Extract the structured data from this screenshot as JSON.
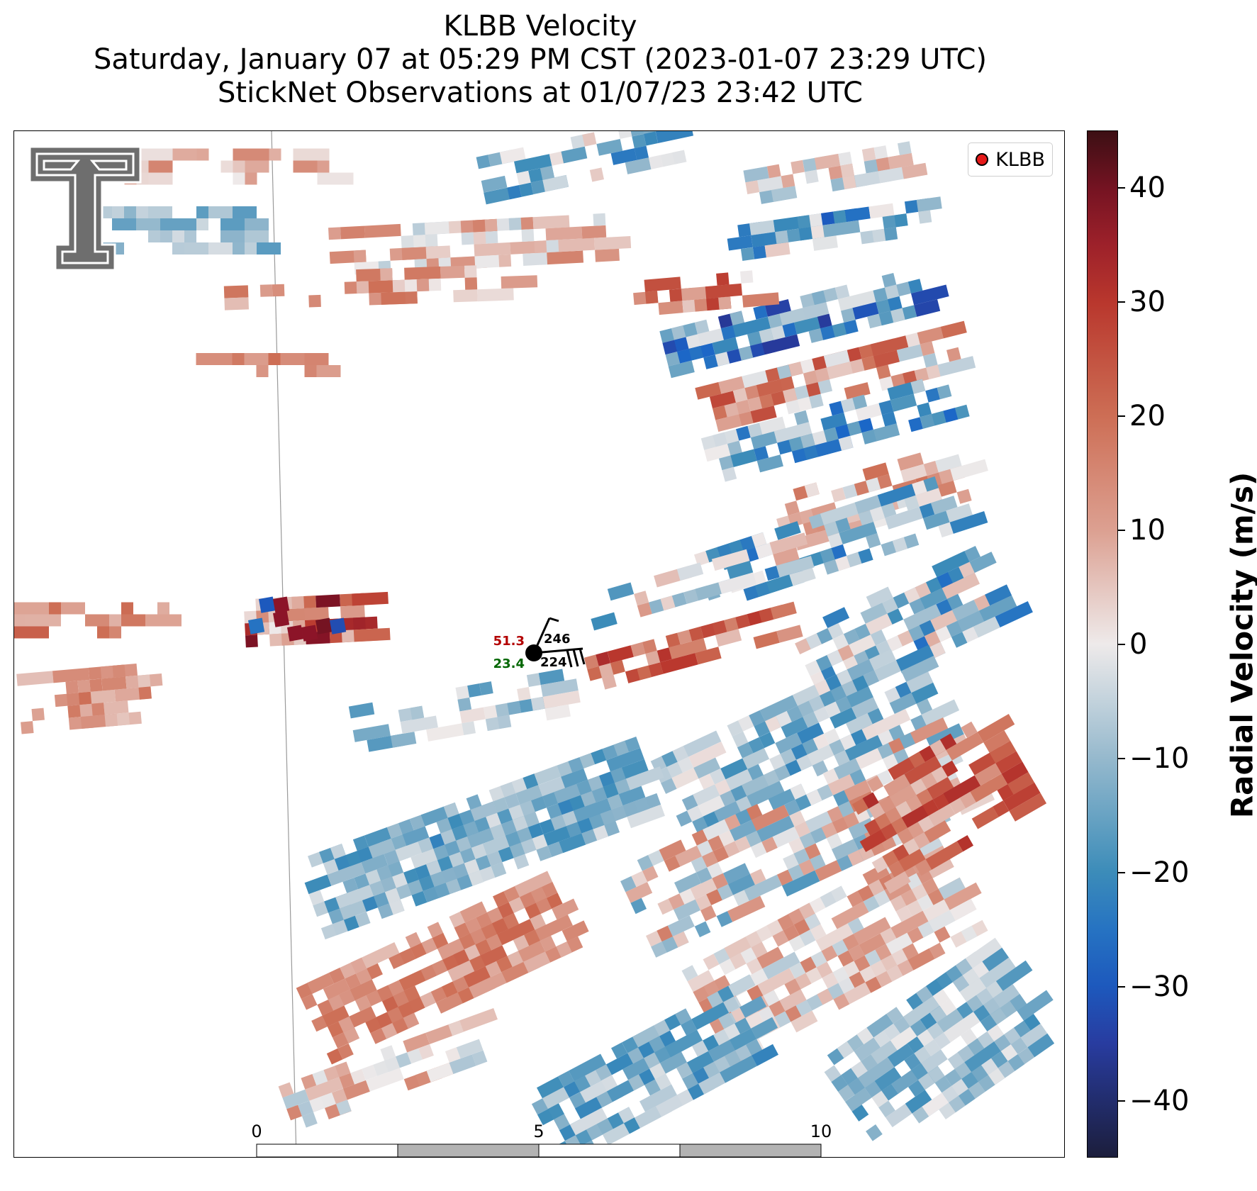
{
  "title": {
    "line1": "KLBB Velocity",
    "line2": "Saturday, January 07 at 05:29 PM CST (2023-01-07 23:29 UTC)",
    "line3": "StickNet Observations at 01/07/23 23:42 UTC"
  },
  "legend": {
    "label": "KLBB",
    "marker_color": "#e51a1a"
  },
  "colorbar": {
    "label": "Radial Velocity (m/s)",
    "vmin": -45,
    "vmax": 45,
    "ticks": [
      40,
      30,
      20,
      10,
      0,
      -10,
      -20,
      -30,
      -40
    ],
    "tick_labels": [
      "40",
      "30",
      "20",
      "10",
      "0",
      "−10",
      "−20",
      "−30",
      "−40"
    ],
    "colormap": "red-white-blue diverging"
  },
  "station": {
    "temperature": "51.3",
    "dewpoint": "23.4",
    "upper_right": "246",
    "lower_right": "224",
    "temperature_color": "#b30000",
    "dewpoint_color": "#006600"
  },
  "scale_bar": {
    "unit": "km",
    "tick_labels": [
      "0",
      "5",
      "10"
    ]
  },
  "logo": {
    "icon": "texas-tech-double-t-logo",
    "color": "#6e6e6e"
  }
}
